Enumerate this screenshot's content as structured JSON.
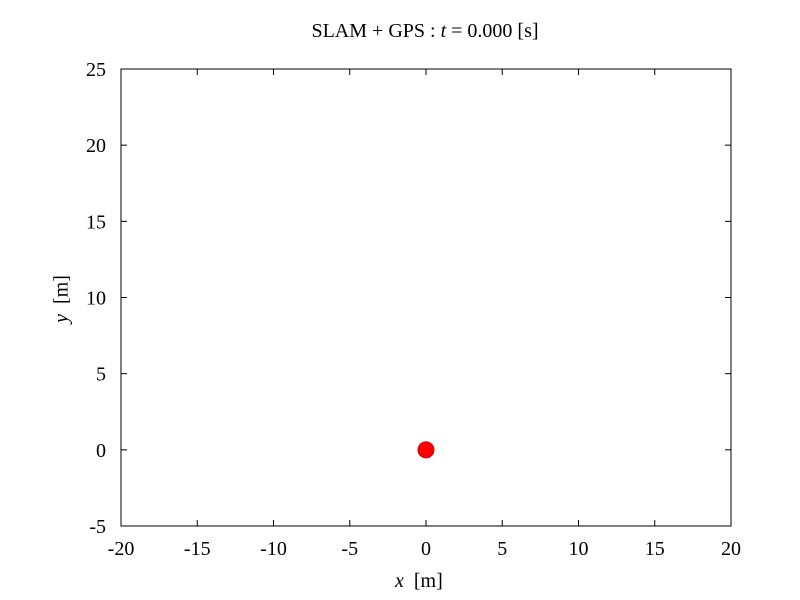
{
  "chart_data": {
    "type": "scatter",
    "title": {
      "prefix": "SLAM + GPS : ",
      "var": "t",
      "equals": " = ",
      "value": "0.000",
      "unit": " [s]"
    },
    "xlabel": {
      "var": "x",
      "unit": "[m]"
    },
    "ylabel": {
      "var": "y",
      "unit": "[m]"
    },
    "xlim": [
      -20,
      20
    ],
    "ylim": [
      -5,
      25
    ],
    "xticks": [
      -20,
      -15,
      -10,
      -5,
      0,
      5,
      10,
      15,
      20
    ],
    "yticks": [
      -5,
      0,
      5,
      10,
      15,
      20,
      25
    ],
    "grid": false,
    "points": [
      {
        "x": 0,
        "y": 0,
        "color": "#ff0000"
      }
    ]
  }
}
